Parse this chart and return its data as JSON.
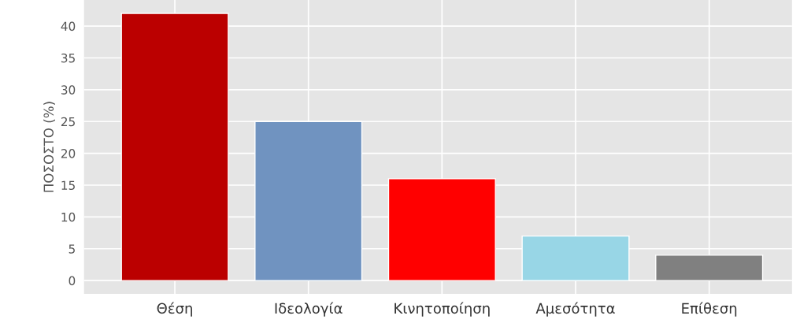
{
  "chart_data": {
    "type": "bar",
    "ylabel": "ΠΟΣΟΣΤΟ (%)",
    "categories": [
      "Θέση",
      "Ιδεολογία",
      "Κινητοποίηση",
      "Αμεσότητα",
      "Επίθεση"
    ],
    "values": [
      42,
      25,
      16,
      7,
      4
    ],
    "colors": [
      "#bb0000",
      "#7093c0",
      "#ff0000",
      "#98d6e6",
      "#808080"
    ],
    "ylim": [
      -2.1,
      44.1
    ],
    "yticks": [
      0,
      5,
      10,
      15,
      20,
      25,
      30,
      35,
      40
    ],
    "grid": true
  }
}
